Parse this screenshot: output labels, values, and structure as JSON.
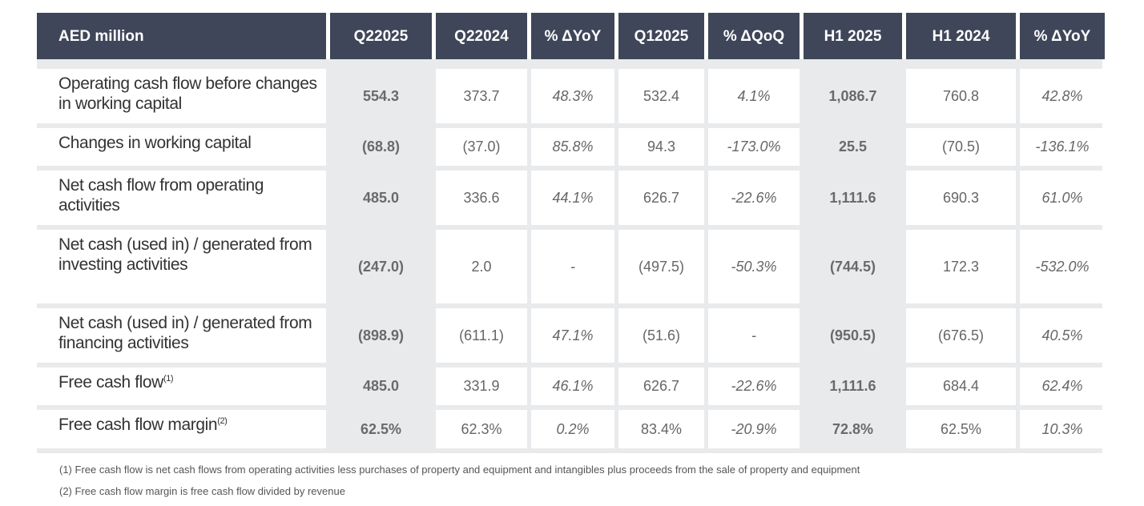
{
  "header": {
    "label": "AED million",
    "cols": [
      [
        "Q2",
        "2025"
      ],
      [
        "Q2",
        "2024"
      ],
      [
        "% Δ",
        "YoY"
      ],
      [
        "Q1",
        "2025"
      ],
      [
        "% Δ",
        "QoQ"
      ],
      [
        "H1 2025",
        ""
      ],
      [
        "H1 2024",
        ""
      ],
      [
        "% Δ",
        "YoY"
      ]
    ]
  },
  "rows": [
    {
      "label": "Operating cash flow before changes in working capital",
      "values": [
        "554.3",
        "373.7",
        "48.3%",
        "532.4",
        "4.1%",
        "1,086.7",
        "760.8",
        "42.8%"
      ]
    },
    {
      "label": "Changes in working capital",
      "values": [
        "(68.8)",
        "(37.0)",
        "85.8%",
        "94.3",
        "-173.0%",
        "25.5",
        "(70.5)",
        "-136.1%"
      ]
    },
    {
      "label": "Net cash flow from operating activities",
      "values": [
        "485.0",
        "336.6",
        "44.1%",
        "626.7",
        "-22.6%",
        "1,111.6",
        "690.3",
        "61.0%"
      ]
    },
    {
      "label": "Net cash (used in) / generated from investing activities",
      "values": [
        "(247.0)",
        "2.0",
        "-",
        "(497.5)",
        "-50.3%",
        "(744.5)",
        "172.3",
        "-532.0%"
      ]
    },
    {
      "label": "Net cash (used in) / generated from financing activities",
      "values": [
        "(898.9)",
        "(611.1)",
        "47.1%",
        "(51.6)",
        "-",
        "(950.5)",
        "(676.5)",
        "40.5%"
      ]
    },
    {
      "label": "Free cash flow",
      "sup": "(1)",
      "values": [
        "485.0",
        "331.9",
        "46.1%",
        "626.7",
        "-22.6%",
        "1,111.6",
        "684.4",
        "62.4%"
      ]
    },
    {
      "label": "Free cash flow margin",
      "sup": "(2)",
      "values": [
        "62.5%",
        "62.3%",
        "0.2%",
        "83.4%",
        "-20.9%",
        "72.8%",
        "62.5%",
        "10.3%"
      ]
    }
  ],
  "notes": [
    "(1) Free cash flow is net cash flows from operating activities less purchases of property and equipment and intangibles plus proceeds from the sale of property and equipment",
    "(2) Free cash flow margin is free cash flow divided by revenue"
  ]
}
